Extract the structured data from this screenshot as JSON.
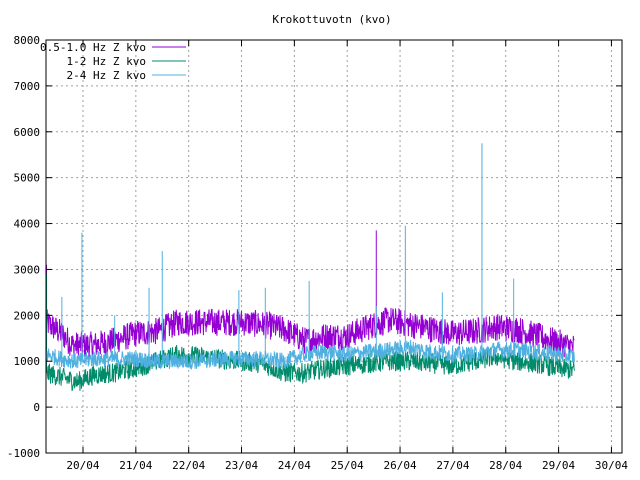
{
  "chart_data": {
    "type": "line",
    "title": "Krokottuvotn (kvo)",
    "xlabel": "",
    "ylabel": "",
    "x_ticks": [
      "20/04",
      "21/04",
      "22/04",
      "23/04",
      "24/04",
      "25/04",
      "26/04",
      "27/04",
      "28/04",
      "29/04",
      "30/04"
    ],
    "xlim": [
      19.3,
      30.2
    ],
    "ylim": [
      -1000,
      8000
    ],
    "y_ticks": [
      -1000,
      0,
      1000,
      2000,
      3000,
      4000,
      5000,
      6000,
      7000,
      8000
    ],
    "grid": true,
    "legend_position": "top-left",
    "series": [
      {
        "name": "0.5-1.0 Hz Z kvo",
        "color": "#9400d3",
        "band": 300,
        "x": [
          19.3,
          19.6,
          19.8,
          20.2,
          20.6,
          21.0,
          21.4,
          21.8,
          22.2,
          22.6,
          23.0,
          23.4,
          23.8,
          24.2,
          24.6,
          25.0,
          25.4,
          25.8,
          26.2,
          26.6,
          27.0,
          27.4,
          27.8,
          28.2,
          28.6,
          29.0,
          29.3
        ],
        "y": [
          1850,
          1600,
          1350,
          1350,
          1450,
          1600,
          1650,
          1850,
          1850,
          1850,
          1850,
          1800,
          1700,
          1450,
          1550,
          1550,
          1750,
          1900,
          1800,
          1700,
          1600,
          1650,
          1750,
          1700,
          1550,
          1400,
          1300
        ],
        "spikes": [
          [
            19.31,
            3100
          ],
          [
            25.55,
            3850
          ]
        ]
      },
      {
        "name": "1-2 Hz Z kvo",
        "color": "#008b6b",
        "band": 220,
        "x": [
          19.3,
          19.6,
          19.9,
          20.2,
          20.6,
          21.0,
          21.4,
          21.8,
          22.2,
          22.6,
          23.0,
          23.4,
          23.8,
          24.2,
          24.6,
          25.0,
          25.4,
          25.8,
          26.2,
          26.6,
          27.0,
          27.4,
          27.8,
          28.2,
          28.6,
          29.0,
          29.3
        ],
        "y": [
          750,
          650,
          550,
          700,
          750,
          850,
          1000,
          1150,
          1100,
          1050,
          1000,
          950,
          750,
          750,
          850,
          900,
          950,
          1000,
          1000,
          950,
          900,
          1000,
          1100,
          1000,
          950,
          850,
          800
        ],
        "spikes": [
          [
            19.31,
            2900
          ]
        ]
      },
      {
        "name": "2-4 Hz Z kvo",
        "color": "#4fb0e0",
        "band": 180,
        "x": [
          19.3,
          19.6,
          19.9,
          20.2,
          20.6,
          21.0,
          21.4,
          21.8,
          22.2,
          22.6,
          23.0,
          23.4,
          23.8,
          24.2,
          24.6,
          25.0,
          25.4,
          25.8,
          26.2,
          26.6,
          27.0,
          27.4,
          27.8,
          28.2,
          28.6,
          29.0,
          29.3
        ],
        "y": [
          1150,
          1050,
          1000,
          1050,
          1050,
          1050,
          1000,
          1000,
          1000,
          1050,
          1050,
          1050,
          1000,
          1150,
          1200,
          1150,
          1200,
          1250,
          1300,
          1200,
          1150,
          1150,
          1250,
          1250,
          1200,
          1150,
          1100
        ],
        "spikes": [
          [
            19.6,
            2400
          ],
          [
            19.98,
            3800
          ],
          [
            20.6,
            2000
          ],
          [
            21.25,
            2600
          ],
          [
            21.5,
            3400
          ],
          [
            22.95,
            2550
          ],
          [
            23.45,
            2600
          ],
          [
            24.28,
            2750
          ],
          [
            25.55,
            2200
          ],
          [
            26.1,
            3950
          ],
          [
            26.8,
            2500
          ],
          [
            27.55,
            5750
          ],
          [
            28.15,
            2800
          ]
        ]
      }
    ]
  }
}
